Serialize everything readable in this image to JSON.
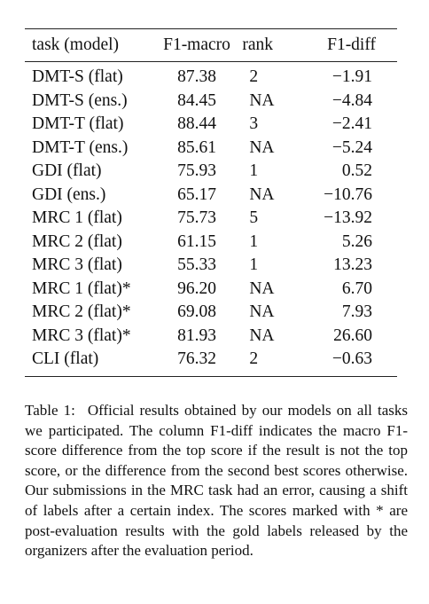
{
  "table": {
    "headers": {
      "task": "task (model)",
      "f1": "F1-macro",
      "rank": "rank",
      "diff": "F1-diff"
    },
    "rows": [
      {
        "task": "DMT-S (flat)",
        "f1": "87.38",
        "rank": "2",
        "diff": "−1.91"
      },
      {
        "task": "DMT-S (ens.)",
        "f1": "84.45",
        "rank": "NA",
        "diff": "−4.84"
      },
      {
        "task": "DMT-T (flat)",
        "f1": "88.44",
        "rank": "3",
        "diff": "−2.41"
      },
      {
        "task": "DMT-T (ens.)",
        "f1": "85.61",
        "rank": "NA",
        "diff": "−5.24"
      },
      {
        "task": "GDI (flat)",
        "f1": "75.93",
        "rank": "1",
        "diff": "0.52"
      },
      {
        "task": "GDI (ens.)",
        "f1": "65.17",
        "rank": "NA",
        "diff": "−10.76"
      },
      {
        "task": "MRC 1 (flat)",
        "f1": "75.73",
        "rank": "5",
        "diff": "−13.92"
      },
      {
        "task": "MRC 2 (flat)",
        "f1": "61.15",
        "rank": "1",
        "diff": "5.26"
      },
      {
        "task": "MRC 3 (flat)",
        "f1": "55.33",
        "rank": "1",
        "diff": "13.23"
      },
      {
        "task": "MRC 1 (flat)*",
        "f1": "96.20",
        "rank": "NA",
        "diff": "6.70"
      },
      {
        "task": "MRC 2 (flat)*",
        "f1": "69.08",
        "rank": "NA",
        "diff": "7.93"
      },
      {
        "task": "MRC 3 (flat)*",
        "f1": "81.93",
        "rank": "NA",
        "diff": "26.60"
      },
      {
        "task": "CLI (flat)",
        "f1": "76.32",
        "rank": "2",
        "diff": "−0.63"
      }
    ]
  },
  "caption": {
    "label": "Table 1:",
    "text": "Official results obtained by our models on all tasks we participated. The column F1-diff indicates the macro F1-score difference from the top score if the result is not the top score, or the difference from the second best scores otherwise. Our submissions in the MRC task had an error, causing a shift of labels after a certain index. The scores marked with * are post-evaluation results with the gold labels released by the organizers after the evaluation period."
  }
}
